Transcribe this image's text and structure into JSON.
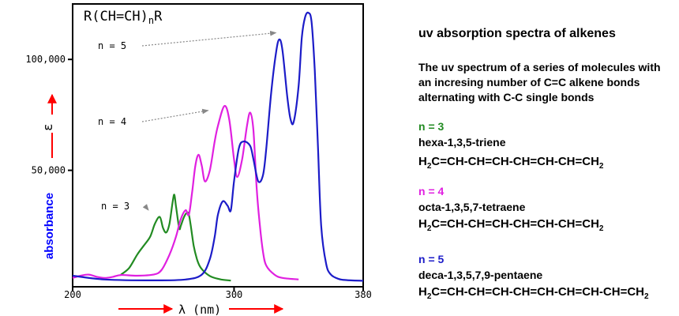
{
  "chart_data": {
    "type": "line",
    "title": "R(CH=CH)nR",
    "title_parts": {
      "pre": "R(CH=CH)",
      "sub": "n",
      "post": "R"
    },
    "xlabel": "λ (nm)",
    "ylabel": "absorbance",
    "yaxis_symbol": "ε",
    "xlim": [
      200,
      380
    ],
    "ylim": [
      0,
      125000
    ],
    "x_ticks": [
      200,
      300,
      380
    ],
    "x_tick_labels": [
      "200",
      "300",
      "380"
    ],
    "y_ticks": [
      50000,
      100000
    ],
    "y_tick_labels": [
      "50,000",
      "100,000"
    ],
    "grid": false,
    "series": [
      {
        "name": "n = 3",
        "color": "#228b22",
        "x": [
          230,
          235,
          240,
          244,
          248,
          251,
          254,
          256,
          258,
          260,
          262,
          263,
          264,
          266,
          267,
          269,
          271,
          272,
          273,
          275,
          277,
          279,
          282,
          286,
          292,
          298
        ],
        "y": [
          3000,
          6000,
          12000,
          16000,
          20000,
          26000,
          29000,
          24000,
          22000,
          26000,
          36000,
          39000,
          34000,
          24000,
          25000,
          29000,
          31000,
          30000,
          26000,
          16000,
          10000,
          6500,
          4000,
          2000,
          800,
          300
        ]
      },
      {
        "name": "n = 4",
        "color": "#e020e0",
        "x": [
          200,
          205,
          210,
          215,
          220,
          225,
          230,
          240,
          250,
          255,
          260,
          264,
          267,
          270,
          272,
          274,
          276,
          278,
          280,
          282,
          285,
          288,
          290,
          294,
          297,
          300,
          302,
          305,
          308,
          310,
          312,
          314,
          316,
          318,
          320,
          325,
          330,
          340
        ],
        "y": [
          1500,
          2500,
          3000,
          2000,
          1500,
          2000,
          2800,
          2500,
          3000,
          5000,
          12000,
          20000,
          28000,
          32000,
          30000,
          40000,
          52000,
          57000,
          52000,
          45000,
          50000,
          63000,
          70000,
          79000,
          73000,
          55000,
          47000,
          55000,
          70000,
          76000,
          68000,
          42000,
          25000,
          13000,
          7000,
          3000,
          1500,
          800
        ]
      },
      {
        "name": "n = 5",
        "color": "#1c1cc8",
        "x": [
          200,
          220,
          250,
          270,
          280,
          285,
          288,
          290,
          293,
          296,
          298,
          300,
          303,
          306,
          310,
          312,
          315,
          318,
          320,
          323,
          326,
          328,
          330,
          333,
          335,
          337,
          340,
          342,
          344,
          346,
          348,
          350,
          352,
          354,
          357,
          360,
          365,
          370,
          380
        ],
        "y": [
          2500,
          800,
          400,
          800,
          3000,
          10000,
          20000,
          30000,
          36000,
          34000,
          32000,
          45000,
          60000,
          63000,
          61000,
          55000,
          45000,
          48000,
          60000,
          85000,
          103000,
          109000,
          104000,
          83000,
          73000,
          72000,
          88000,
          110000,
          119000,
          121000,
          117000,
          95000,
          60000,
          25000,
          8000,
          3000,
          1000,
          500,
          200
        ]
      }
    ],
    "annotations": [
      {
        "text": "n = 5",
        "arrow_to_x": 326,
        "arrow_to_y": 112000
      },
      {
        "text": "n = 4",
        "arrow_to_x": 284,
        "arrow_to_y": 77000
      },
      {
        "text": "n = 3",
        "arrow_to_x": 247,
        "arrow_to_y": 32000
      }
    ]
  },
  "panel": {
    "title": "uv absorption spectra of alkenes",
    "description": "The uv spectrum of a series of molecules with an incresing number of C=C alkene bonds alternating with C-C single bonds",
    "entries": [
      {
        "n_label": "n = 3",
        "name": "hexa-1,3,5-triene",
        "color": "#228b22",
        "formula_pre": "H",
        "formula_sub": "2",
        "formula_mid": "C=CH-CH=CH-CH=CH-CH=CH",
        "formula_sub2": "2"
      },
      {
        "n_label": "n = 4",
        "name": "octa-1,3,5,7-tetraene",
        "color": "#e020e0",
        "formula_pre": "H",
        "formula_sub": "2",
        "formula_mid": "C=CH-CH=CH-CH=CH-CH=CH",
        "formula_sub2": "2"
      },
      {
        "n_label": "n = 5",
        "name": "deca-1,3,5,7,9-pentaene",
        "color": "#1c1cc8",
        "formula_pre": "H",
        "formula_sub": "2",
        "formula_mid": "C=CH-CH=CH-CH=CH-CH=CH-CH=CH",
        "formula_sub2": "2"
      }
    ]
  },
  "colors": {
    "arrow_red": "#ff0000",
    "ylabel_blue": "#0000ff",
    "axis": "#000000",
    "annotation_arrow": "#888888"
  }
}
